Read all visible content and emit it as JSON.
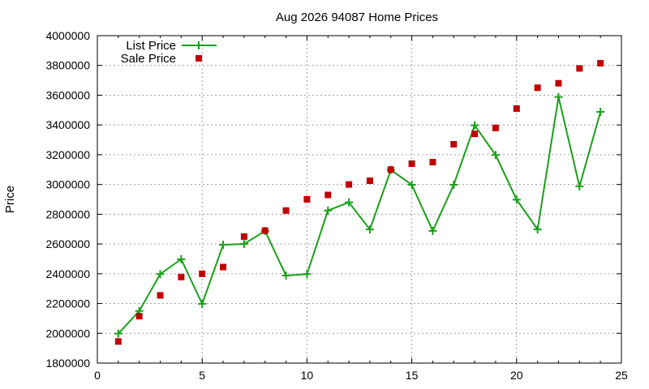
{
  "chart_data": {
    "type": "line",
    "title": "Aug 2026 94087 Home Prices",
    "xlabel": "",
    "ylabel": "Price",
    "xlim": [
      0,
      25
    ],
    "ylim": [
      1800000,
      4000000
    ],
    "x_ticks": [
      0,
      5,
      10,
      15,
      20,
      25
    ],
    "y_ticks": [
      1800000,
      2000000,
      2200000,
      2400000,
      2600000,
      2800000,
      3000000,
      3200000,
      3400000,
      3600000,
      3800000,
      4000000
    ],
    "grid": true,
    "legend_position": "top-left",
    "series": [
      {
        "name": "List Price",
        "style": "line-plus",
        "color": "#1aa01a",
        "x": [
          1,
          2,
          3,
          4,
          5,
          6,
          7,
          8,
          9,
          10,
          11,
          12,
          13,
          14,
          15,
          16,
          17,
          18,
          19,
          20,
          21,
          22,
          23,
          24
        ],
        "values": [
          1998000,
          2150000,
          2398000,
          2498000,
          2198000,
          2595000,
          2600000,
          2688000,
          2388000,
          2398000,
          2825000,
          2880000,
          2698000,
          3098000,
          2998000,
          2688000,
          2998000,
          3398000,
          3198000,
          2898000,
          2698000,
          3588000,
          2988000,
          3488000
        ]
      },
      {
        "name": "Sale Price",
        "style": "square",
        "color": "#c00000",
        "x": [
          1,
          2,
          3,
          4,
          5,
          6,
          7,
          8,
          9,
          10,
          11,
          12,
          13,
          14,
          15,
          16,
          17,
          18,
          19,
          20,
          21,
          22,
          23,
          24
        ],
        "values": [
          1945000,
          2115000,
          2255000,
          2378000,
          2400000,
          2445000,
          2650000,
          2690000,
          2825000,
          2900000,
          2930000,
          3000000,
          3025000,
          3100000,
          3140000,
          3150000,
          3270000,
          3340000,
          3380000,
          3510000,
          3650000,
          3680000,
          3780000,
          3815000
        ]
      }
    ]
  }
}
